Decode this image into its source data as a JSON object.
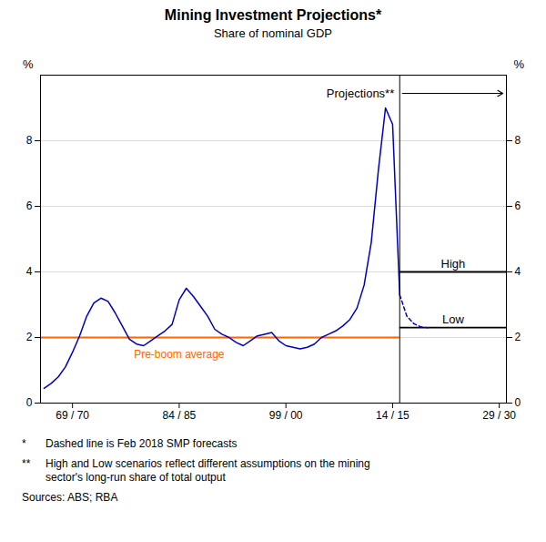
{
  "chart_data": {
    "type": "line",
    "title": "Mining Investment Projections*",
    "subtitle": "Share of nominal GDP",
    "y_label": "%",
    "y2_label": "%",
    "x": [
      1965.5,
      1966.5,
      1967.5,
      1968.5,
      1969.5,
      1970.5,
      1971.5,
      1972.5,
      1973.5,
      1974.5,
      1975.5,
      1976.5,
      1977.5,
      1978.5,
      1979.5,
      1980.5,
      1981.5,
      1982.5,
      1983.5,
      1984.5,
      1985.5,
      1986.5,
      1987.5,
      1988.5,
      1989.5,
      1990.5,
      1991.5,
      1992.5,
      1993.5,
      1994.5,
      1995.5,
      1996.5,
      1997.5,
      1998.5,
      1999.5,
      2000.5,
      2001.5,
      2002.5,
      2003.5,
      2004.5,
      2005.5,
      2006.5,
      2007.5,
      2008.5,
      2009.5,
      2010.5,
      2011.5,
      2012.5,
      2013.5,
      2014.5,
      2015.5,
      2016.5,
      2017.5,
      2018.5,
      2019.5
    ],
    "series": [
      {
        "color": "#0000BB",
        "line_style": "solid",
        "values": [
          0.45,
          0.6,
          0.8,
          1.1,
          1.55,
          2.05,
          2.65,
          3.05,
          3.2,
          3.1,
          2.75,
          2.35,
          1.95,
          1.8,
          1.75,
          1.9,
          2.05,
          2.2,
          2.4,
          3.15,
          3.5,
          3.25,
          2.95,
          2.65,
          2.25,
          2.1,
          2.0,
          1.85,
          1.75,
          1.9,
          2.05,
          2.1,
          2.15,
          1.9,
          1.75,
          1.7,
          1.65,
          1.7,
          1.8,
          2.0,
          2.1,
          2.2,
          2.35,
          2.55,
          2.9,
          3.6,
          4.9,
          7.1,
          9.0,
          8.5,
          3.3,
          null,
          null,
          null,
          null
        ]
      },
      {
        "color": "#0000BB",
        "line_style": "dashed",
        "values": [
          null,
          null,
          null,
          null,
          null,
          null,
          null,
          null,
          null,
          null,
          null,
          null,
          null,
          null,
          null,
          null,
          null,
          null,
          null,
          null,
          null,
          null,
          null,
          null,
          null,
          null,
          null,
          null,
          null,
          null,
          null,
          null,
          null,
          null,
          null,
          null,
          null,
          null,
          null,
          null,
          null,
          null,
          null,
          null,
          null,
          null,
          null,
          null,
          null,
          null,
          3.3,
          2.65,
          2.42,
          2.32,
          2.3
        ]
      }
    ],
    "xlim": [
      1965.0,
      2030.5
    ],
    "xticks": [
      {
        "value": 1969.5,
        "label": "69 / 70"
      },
      {
        "value": 1984.5,
        "label": "84 / 85"
      },
      {
        "value": 1999.5,
        "label": "99 / 00"
      },
      {
        "value": 2014.5,
        "label": "14 / 15"
      },
      {
        "value": 2029.5,
        "label": "29 / 30"
      }
    ],
    "ylim": [
      0,
      10
    ],
    "yticks": [
      0,
      2,
      4,
      6,
      8
    ],
    "y2lim": [
      0,
      10
    ],
    "y2ticks": [
      0,
      2,
      4,
      6,
      8
    ],
    "grid": true,
    "reference_lines": [
      {
        "value": 2.0,
        "from": 1965.0,
        "to": 2015.5,
        "color": "#FF6600",
        "label": "Pre-boom average"
      },
      {
        "value": 4.0,
        "from": 2015.5,
        "to": 2030.5,
        "color": "black",
        "label": "High"
      },
      {
        "value": 2.3,
        "from": 2015.5,
        "to": 2030.5,
        "color": "black",
        "label": "Low"
      }
    ],
    "vertical_line": {
      "x": 2015.5,
      "color": "black",
      "label": "Projections**"
    },
    "footnotes": [
      {
        "bullet": "*",
        "text": "Dashed line is Feb 2018 SMP forecasts"
      },
      {
        "bullet": "**",
        "text": "High and Low scenarios reflect different assumptions on the mining\nsector's long-run share of total output"
      },
      {
        "text": "Sources: ABS; RBA"
      }
    ]
  }
}
